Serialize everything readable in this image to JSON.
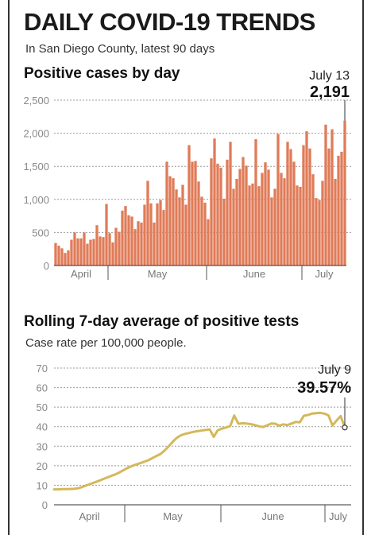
{
  "header": {
    "title": "DAILY COVID-19 TRENDS",
    "subtitle": "In San Diego County, latest 90 days"
  },
  "chart_data": [
    {
      "type": "bar",
      "title": "Positive cases by day",
      "xlabel": "",
      "ylabel": "",
      "ylim": [
        0,
        2500
      ],
      "y_ticks": [
        "0",
        "500",
        "1,000",
        "1,500",
        "2,000",
        "2,500"
      ],
      "month_labels": [
        "April",
        "May",
        "June",
        "July"
      ],
      "grid": true,
      "bar_color": "#e07b58",
      "values": [
        340,
        300,
        260,
        190,
        230,
        390,
        500,
        410,
        410,
        500,
        330,
        390,
        400,
        610,
        440,
        430,
        930,
        490,
        350,
        570,
        510,
        830,
        900,
        760,
        740,
        550,
        670,
        650,
        920,
        1280,
        940,
        650,
        940,
        990,
        840,
        1570,
        1350,
        1320,
        1150,
        1030,
        1220,
        920,
        1820,
        1570,
        1580,
        1270,
        1040,
        950,
        700,
        1620,
        1920,
        1540,
        1480,
        1010,
        1600,
        1870,
        1160,
        1310,
        1460,
        1640,
        1510,
        1210,
        1240,
        1910,
        1200,
        1400,
        1560,
        1450,
        1030,
        1160,
        1990,
        1400,
        1320,
        1870,
        1760,
        1570,
        1210,
        1190,
        1820,
        2030,
        1770,
        1380,
        1020,
        990,
        1280,
        2130,
        1770,
        2060,
        1310,
        1660,
        1720,
        2191
      ],
      "annotation": {
        "label": "July 13",
        "value": "2,191"
      }
    },
    {
      "type": "line",
      "title": "Rolling 7-day average of positive tests",
      "subtitle": "Case rate per 100,000 people.",
      "xlabel": "",
      "ylabel": "",
      "ylim": [
        0,
        70
      ],
      "y_ticks": [
        "0",
        "10",
        "20",
        "30",
        "40",
        "50",
        "60",
        "70"
      ],
      "month_labels": [
        "April",
        "May",
        "June",
        "July"
      ],
      "grid": true,
      "line_color": "#d4b85a",
      "values": [
        7.9,
        7.9,
        8.0,
        8.0,
        8.1,
        8.2,
        8.5,
        9.2,
        10.0,
        10.8,
        11.5,
        12.3,
        13.2,
        14.0,
        14.8,
        15.6,
        16.6,
        17.8,
        18.9,
        19.8,
        20.6,
        21.3,
        22.0,
        22.8,
        23.9,
        25.0,
        26.0,
        27.8,
        29.9,
        32.3,
        34.3,
        35.6,
        36.3,
        36.8,
        37.3,
        37.7,
        38.0,
        38.3,
        38.6,
        34.8,
        38.2,
        39.0,
        39.6,
        40.3,
        45.7,
        41.5,
        41.7,
        41.6,
        41.3,
        40.8,
        40.2,
        39.8,
        40.6,
        41.6,
        41.5,
        40.5,
        41.2,
        40.8,
        41.6,
        42.4,
        42.2,
        45.6,
        46.0,
        46.7,
        46.9,
        47.1,
        46.7,
        45.8,
        40.6,
        43.2,
        45.4,
        39.57
      ],
      "annotation": {
        "label": "July 9",
        "value": "39.57%"
      }
    }
  ]
}
